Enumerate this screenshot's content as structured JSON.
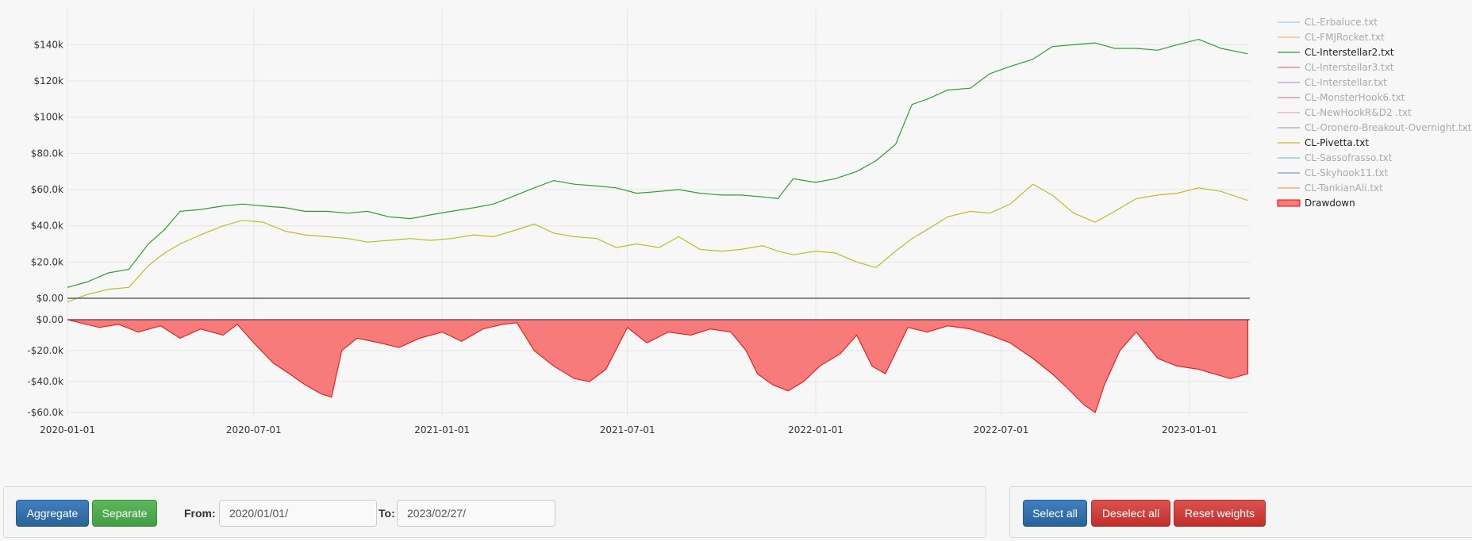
{
  "chart_data": {
    "type": "line",
    "x_range": [
      "2020-01-01",
      "2023-03-01"
    ],
    "x_ticks": [
      "2020-01-01",
      "2020-07-01",
      "2021-01-01",
      "2021-07-01",
      "2022-01-01",
      "2022-07-01",
      "2023-01-01"
    ],
    "equity_panel": {
      "ylim": [
        0,
        145000
      ],
      "y_ticks": [
        0,
        20000,
        40000,
        60000,
        80000,
        100000,
        120000,
        140000
      ],
      "y_tick_labels": [
        "$0.00",
        "$20.0k",
        "$40.0k",
        "$60.0k",
        "$80.0k",
        "$100k",
        "$120k",
        "$140k"
      ],
      "grid": true,
      "series": [
        {
          "name": "CL-Interstellar2.txt",
          "color": "#2ca02c",
          "x": [
            "2020-01-01",
            "2020-01-20",
            "2020-02-10",
            "2020-03-01",
            "2020-03-20",
            "2020-04-05",
            "2020-04-20",
            "2020-05-10",
            "2020-06-01",
            "2020-06-20",
            "2020-07-10",
            "2020-08-01",
            "2020-08-20",
            "2020-09-10",
            "2020-10-01",
            "2020-10-20",
            "2020-11-10",
            "2020-12-01",
            "2020-12-20",
            "2021-01-10",
            "2021-02-01",
            "2021-02-20",
            "2021-03-10",
            "2021-04-01",
            "2021-04-20",
            "2021-05-10",
            "2021-06-01",
            "2021-06-20",
            "2021-07-10",
            "2021-08-01",
            "2021-08-20",
            "2021-09-10",
            "2021-10-01",
            "2021-10-20",
            "2021-11-10",
            "2021-11-25",
            "2021-12-10",
            "2022-01-01",
            "2022-01-20",
            "2022-02-10",
            "2022-03-01",
            "2022-03-20",
            "2022-04-05",
            "2022-04-20",
            "2022-05-10",
            "2022-06-01",
            "2022-06-20",
            "2022-07-10",
            "2022-08-01",
            "2022-08-20",
            "2022-09-10",
            "2022-10-01",
            "2022-10-20",
            "2022-11-10",
            "2022-12-01",
            "2022-12-20",
            "2023-01-10",
            "2023-02-01",
            "2023-02-27"
          ],
          "y": [
            6000,
            9000,
            14000,
            16000,
            30000,
            38000,
            48000,
            49000,
            51000,
            52000,
            51000,
            50000,
            48000,
            48000,
            47000,
            48000,
            45000,
            44000,
            46000,
            48000,
            50000,
            52000,
            56000,
            61000,
            65000,
            63000,
            62000,
            61000,
            58000,
            59000,
            60000,
            58000,
            57000,
            57000,
            56000,
            55000,
            66000,
            64000,
            66000,
            70000,
            76000,
            85000,
            107000,
            110000,
            115000,
            116000,
            124000,
            128000,
            132000,
            139000,
            140000,
            141000,
            138000,
            138000,
            137000,
            140000,
            143000,
            138000,
            135000
          ]
        },
        {
          "name": "CL-Pivetta.txt",
          "color": "#bcbd22",
          "x": [
            "2020-01-01",
            "2020-01-20",
            "2020-02-10",
            "2020-03-01",
            "2020-03-20",
            "2020-04-05",
            "2020-04-20",
            "2020-05-10",
            "2020-06-01",
            "2020-06-20",
            "2020-07-10",
            "2020-08-01",
            "2020-08-20",
            "2020-09-10",
            "2020-10-01",
            "2020-10-20",
            "2020-11-10",
            "2020-12-01",
            "2020-12-20",
            "2021-01-10",
            "2021-02-01",
            "2021-02-20",
            "2021-03-10",
            "2021-04-01",
            "2021-04-20",
            "2021-05-10",
            "2021-06-01",
            "2021-06-20",
            "2021-07-10",
            "2021-08-01",
            "2021-08-20",
            "2021-09-10",
            "2021-10-01",
            "2021-10-20",
            "2021-11-10",
            "2021-11-25",
            "2021-12-10",
            "2022-01-01",
            "2022-01-20",
            "2022-02-10",
            "2022-03-01",
            "2022-03-20",
            "2022-04-05",
            "2022-04-20",
            "2022-05-10",
            "2022-06-01",
            "2022-06-20",
            "2022-07-10",
            "2022-08-01",
            "2022-08-20",
            "2022-09-10",
            "2022-10-01",
            "2022-10-20",
            "2022-11-10",
            "2022-12-01",
            "2022-12-20",
            "2023-01-10",
            "2023-02-01",
            "2023-02-27"
          ],
          "y": [
            -2000,
            2000,
            5000,
            6000,
            18000,
            25000,
            30000,
            35000,
            40000,
            43000,
            42000,
            37000,
            35000,
            34000,
            33000,
            31000,
            32000,
            33000,
            32000,
            33000,
            35000,
            34000,
            37000,
            41000,
            36000,
            34000,
            33000,
            28000,
            30000,
            28000,
            34000,
            27000,
            26000,
            27000,
            29000,
            26000,
            24000,
            26000,
            25000,
            20000,
            17000,
            26000,
            33000,
            38000,
            45000,
            48000,
            47000,
            52000,
            63000,
            57000,
            47000,
            42000,
            48000,
            55000,
            57000,
            58000,
            61000,
            59000,
            54000
          ]
        }
      ]
    },
    "drawdown_panel": {
      "ylim": [
        -62000,
        0
      ],
      "y_ticks": [
        0,
        -20000,
        -40000,
        -60000
      ],
      "y_tick_labels": [
        "$0.00",
        "-$20.0k",
        "-$40.0k",
        "-$60.0k"
      ],
      "series": {
        "name": "Drawdown",
        "type": "area",
        "color": "#ff0000",
        "fill": "#f77b7b",
        "x": [
          "2020-01-01",
          "2020-02-01",
          "2020-02-20",
          "2020-03-10",
          "2020-04-01",
          "2020-04-20",
          "2020-05-10",
          "2020-06-01",
          "2020-06-15",
          "2020-07-01",
          "2020-07-20",
          "2020-08-05",
          "2020-08-20",
          "2020-09-05",
          "2020-09-15",
          "2020-09-25",
          "2020-10-10",
          "2020-11-01",
          "2020-11-20",
          "2020-12-10",
          "2021-01-01",
          "2021-01-20",
          "2021-02-10",
          "2021-03-01",
          "2021-03-15",
          "2021-04-01",
          "2021-04-20",
          "2021-05-10",
          "2021-05-25",
          "2021-06-10",
          "2021-07-01",
          "2021-07-20",
          "2021-08-10",
          "2021-09-01",
          "2021-09-20",
          "2021-10-10",
          "2021-10-25",
          "2021-11-05",
          "2021-11-20",
          "2021-12-05",
          "2021-12-20",
          "2022-01-05",
          "2022-01-25",
          "2022-02-10",
          "2022-02-25",
          "2022-03-10",
          "2022-04-01",
          "2022-04-20",
          "2022-05-10",
          "2022-06-01",
          "2022-06-20",
          "2022-07-10",
          "2022-08-01",
          "2022-08-20",
          "2022-09-05",
          "2022-09-20",
          "2022-10-01",
          "2022-10-10",
          "2022-10-25",
          "2022-11-10",
          "2022-12-01",
          "2022-12-20",
          "2023-01-10",
          "2023-01-25",
          "2023-02-10",
          "2023-02-27"
        ],
        "y": [
          0,
          -5000,
          -3000,
          -8000,
          -4000,
          -12000,
          -6000,
          -10000,
          -3000,
          -15000,
          -28000,
          -35000,
          -42000,
          -48000,
          -50000,
          -20000,
          -12000,
          -15000,
          -18000,
          -12000,
          -8000,
          -14000,
          -6000,
          -3000,
          -2000,
          -20000,
          -30000,
          -38000,
          -40000,
          -32000,
          -5000,
          -15000,
          -8000,
          -10000,
          -6000,
          -8000,
          -20000,
          -35000,
          -42000,
          -46000,
          -40000,
          -30000,
          -22000,
          -10000,
          -30000,
          -35000,
          -5000,
          -8000,
          -4000,
          -6000,
          -10000,
          -15000,
          -25000,
          -35000,
          -45000,
          -55000,
          -60000,
          -42000,
          -20000,
          -8000,
          -25000,
          -30000,
          -32000,
          -35000,
          -38000,
          -35000
        ]
      }
    },
    "legend": {
      "placement": "right",
      "entries": [
        {
          "label": "CL-Erbaluce.txt",
          "color": "#9ecae1",
          "active": false
        },
        {
          "label": "CL-FMJRocket.txt",
          "color": "#fdae6b",
          "active": false
        },
        {
          "label": "CL-Interstellar2.txt",
          "color": "#2ca02c",
          "active": true
        },
        {
          "label": "CL-Interstellar3.txt",
          "color": "#e57373",
          "active": false
        },
        {
          "label": "CL-Interstellar.txt",
          "color": "#b39ddb",
          "active": false
        },
        {
          "label": "CL-MonsterHook6.txt",
          "color": "#c48b9f",
          "active": false
        },
        {
          "label": "CL-NewHookR&D2 .txt",
          "color": "#f4a6c0",
          "active": false
        },
        {
          "label": "CL-Oronero-Breakout-Overnight.txt",
          "color": "#aaaaaa",
          "active": false
        },
        {
          "label": "CL-Pivetta.txt",
          "color": "#bcbd22",
          "active": true
        },
        {
          "label": "CL-Sassofrasso.txt",
          "color": "#7fc8d8",
          "active": false
        },
        {
          "label": "CL-Skyhook11.txt",
          "color": "#6f9fd8",
          "active": false
        },
        {
          "label": "CL-TankianAli.txt",
          "color": "#f5a06b",
          "active": false
        },
        {
          "label": "Drawdown",
          "color": "#ff0000",
          "active": true,
          "swatch": "area"
        }
      ]
    }
  },
  "controls": {
    "aggregate_label": "Aggregate",
    "separate_label": "Separate",
    "from_label": "From:",
    "from_value": "2020/01/01/",
    "to_label": "To:",
    "to_value": "2023/02/27/",
    "select_all_label": "Select all",
    "deselect_all_label": "Deselect all",
    "reset_weights_label": "Reset weights"
  }
}
